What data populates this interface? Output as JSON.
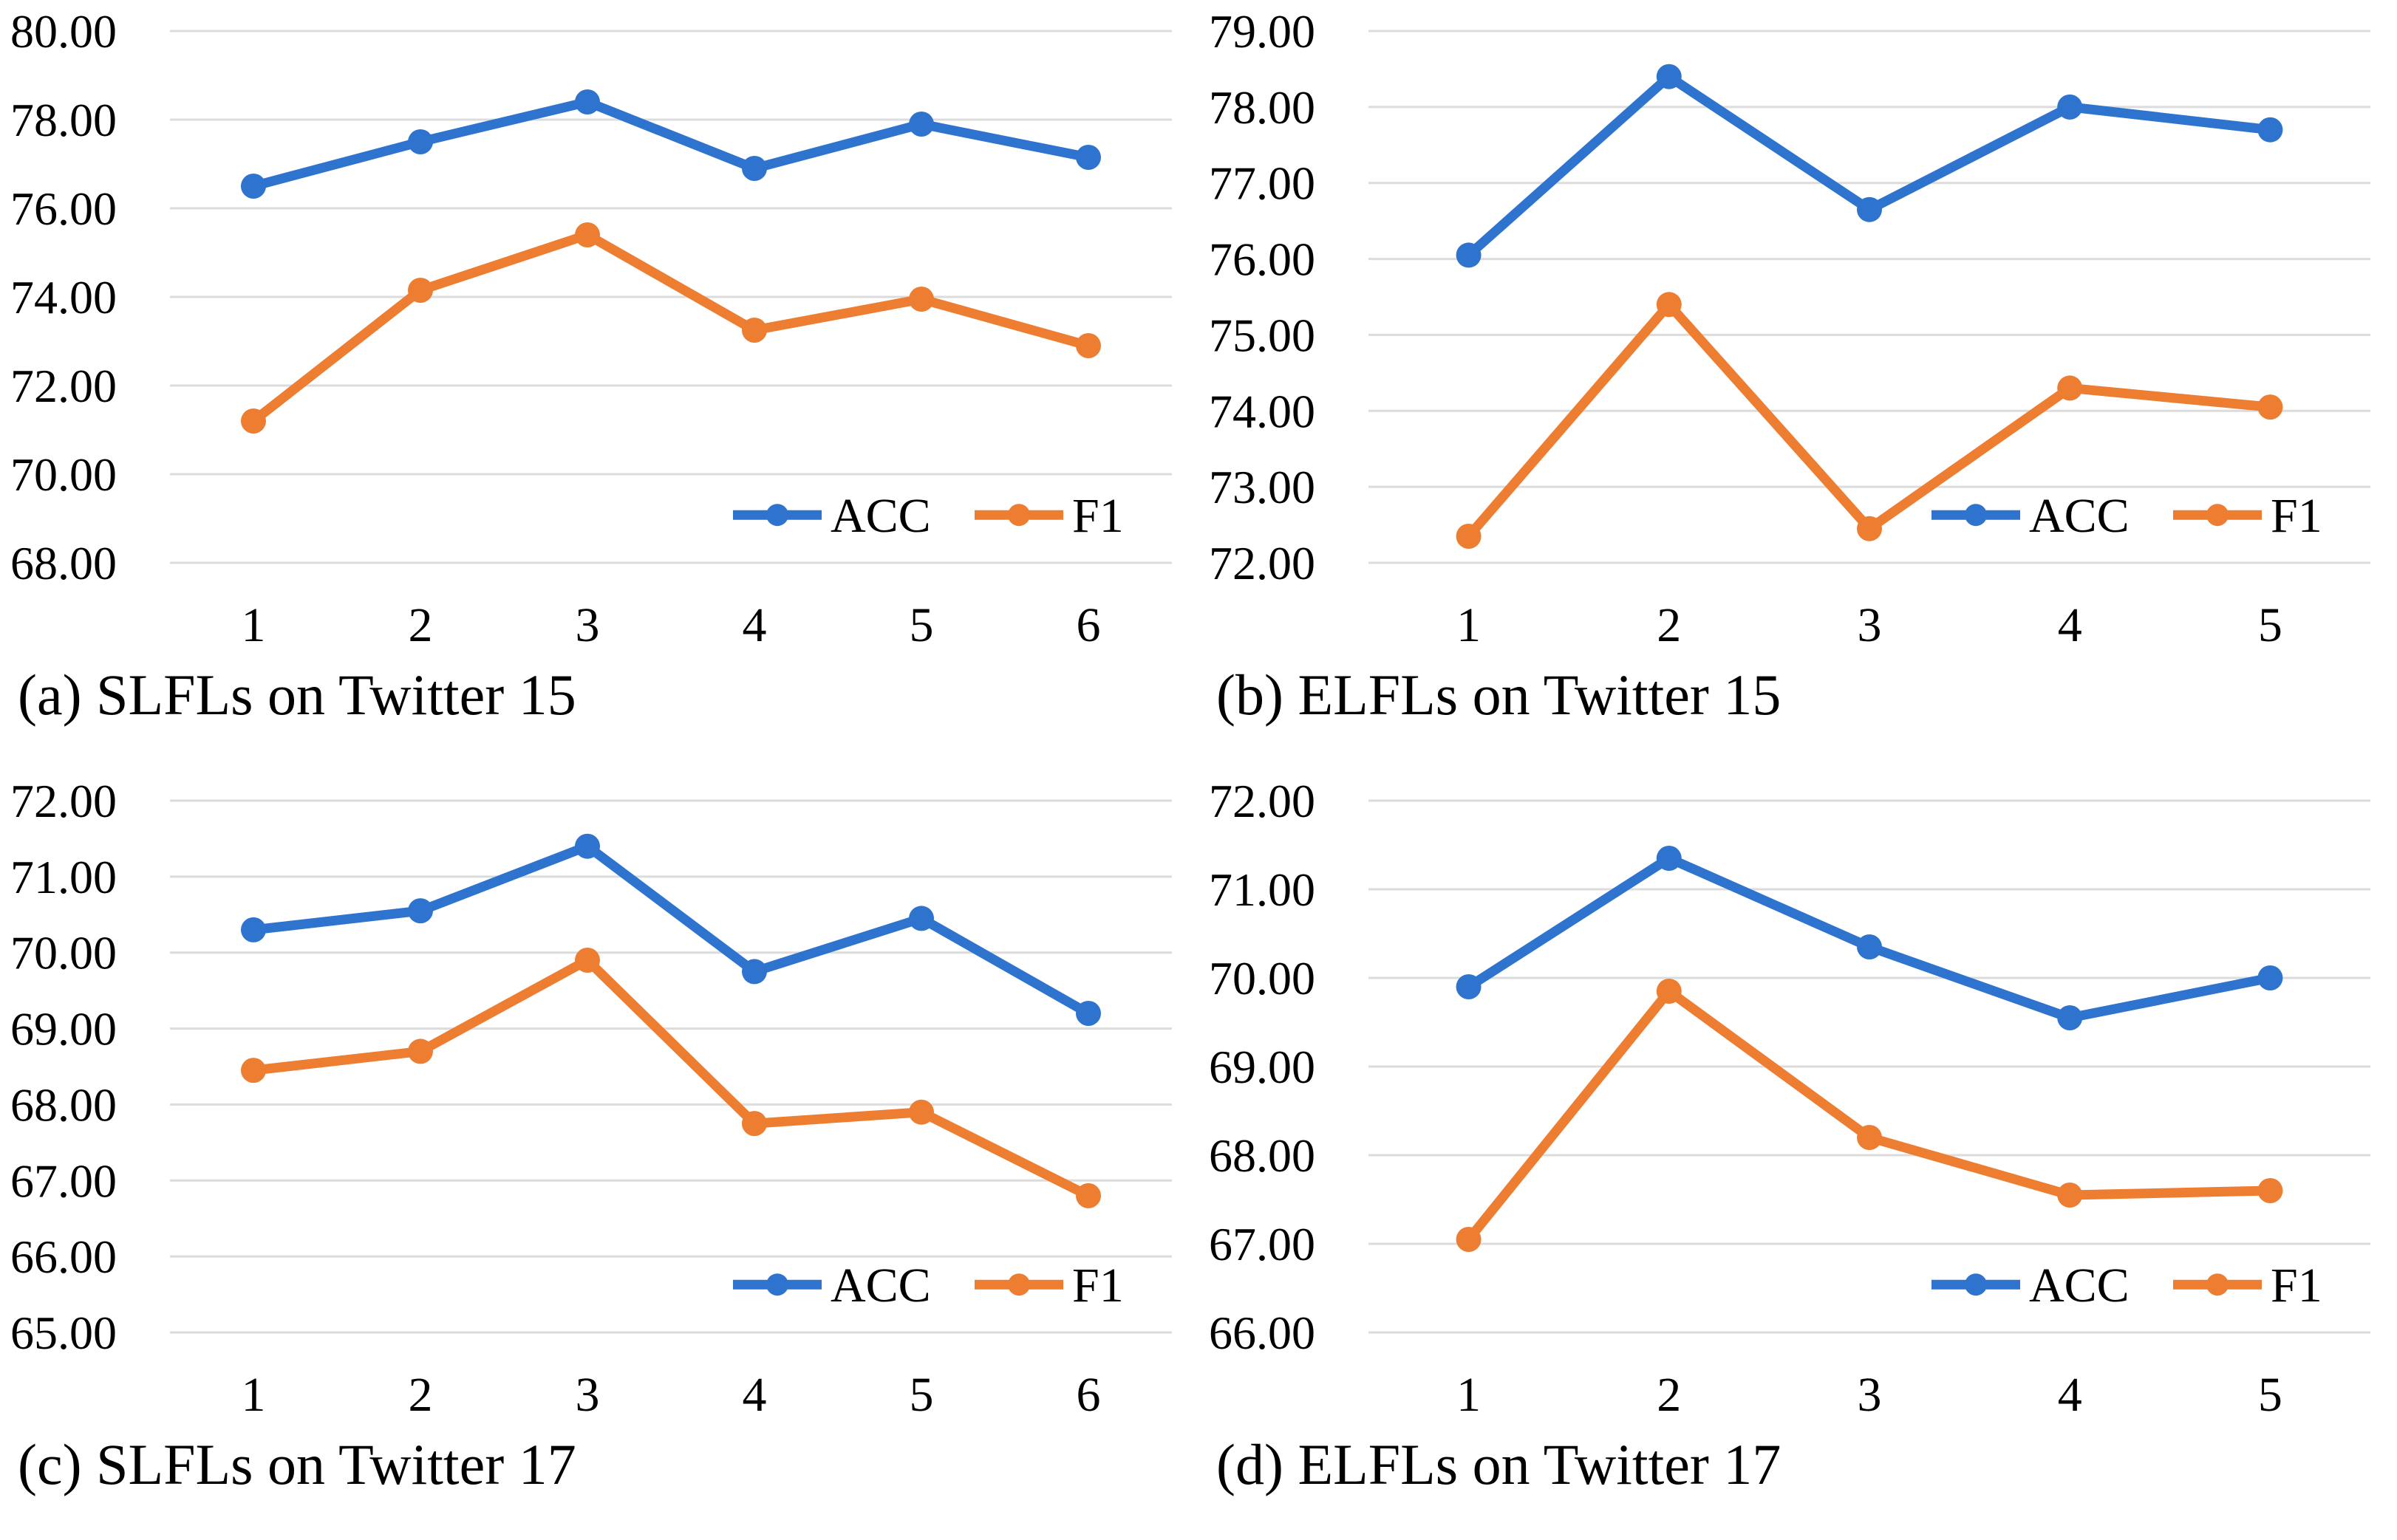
{
  "colors": {
    "acc": "#2E74CF",
    "f1": "#ED7D31",
    "gridline": "#DCDCDC",
    "text": "#000000",
    "background": "#FFFFFF"
  },
  "chart_data": [
    {
      "type": "line",
      "caption": "(a) SLFLs on Twitter 15",
      "categories": [
        "1",
        "2",
        "3",
        "4",
        "5",
        "6"
      ],
      "yticks": [
        "80.00",
        "78.00",
        "76.00",
        "74.00",
        "72.00",
        "70.00",
        "68.00"
      ],
      "ylim": [
        68,
        80
      ],
      "grid": true,
      "legend_position": "lower-right",
      "series": [
        {
          "name": "ACC",
          "color": "#2E74CF",
          "values": [
            76.5,
            77.5,
            78.4,
            76.9,
            77.9,
            77.15
          ]
        },
        {
          "name": "F1",
          "color": "#ED7D31",
          "values": [
            71.2,
            74.15,
            75.4,
            73.25,
            73.95,
            72.9
          ]
        }
      ]
    },
    {
      "type": "line",
      "caption": "(b) ELFLs on Twitter 15",
      "categories": [
        "1",
        "2",
        "3",
        "4",
        "5"
      ],
      "yticks": [
        "79.00",
        "78.00",
        "77.00",
        "76.00",
        "75.00",
        "74.00",
        "73.00",
        "72.00"
      ],
      "ylim": [
        72,
        79
      ],
      "grid": true,
      "legend_position": "lower-right",
      "series": [
        {
          "name": "ACC",
          "color": "#2E74CF",
          "values": [
            76.05,
            78.4,
            76.65,
            78.0,
            77.7
          ]
        },
        {
          "name": "F1",
          "color": "#ED7D31",
          "values": [
            72.35,
            75.4,
            72.45,
            74.3,
            74.05
          ]
        }
      ]
    },
    {
      "type": "line",
      "caption": "(c) SLFLs on Twitter 17",
      "categories": [
        "1",
        "2",
        "3",
        "4",
        "5",
        "6"
      ],
      "yticks": [
        "72.00",
        "71.00",
        "70.00",
        "69.00",
        "68.00",
        "67.00",
        "66.00",
        "65.00"
      ],
      "ylim": [
        65,
        72
      ],
      "grid": true,
      "legend_position": "lower-right",
      "series": [
        {
          "name": "ACC",
          "color": "#2E74CF",
          "values": [
            70.3,
            70.55,
            71.4,
            69.75,
            70.45,
            69.2
          ]
        },
        {
          "name": "F1",
          "color": "#ED7D31",
          "values": [
            68.45,
            68.7,
            69.9,
            67.75,
            67.9,
            66.8
          ]
        }
      ]
    },
    {
      "type": "line",
      "caption": "(d) ELFLs on Twitter 17",
      "categories": [
        "1",
        "2",
        "3",
        "4",
        "5"
      ],
      "yticks": [
        "72.00",
        "71.00",
        "70.00",
        "69.00",
        "68.00",
        "67.00",
        "66.00"
      ],
      "ylim": [
        66,
        72
      ],
      "grid": true,
      "legend_position": "lower-right",
      "series": [
        {
          "name": "ACC",
          "color": "#2E74CF",
          "values": [
            69.9,
            71.35,
            70.35,
            69.55,
            70.0
          ]
        },
        {
          "name": "F1",
          "color": "#ED7D31",
          "values": [
            67.05,
            69.85,
            68.2,
            67.55,
            67.6
          ]
        }
      ]
    }
  ]
}
